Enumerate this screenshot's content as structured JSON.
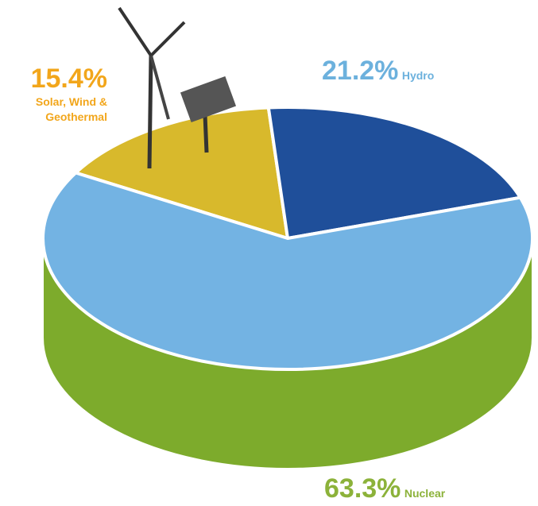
{
  "chart_data": {
    "type": "pie",
    "categories": [
      "Solar, Wind & Geothermal",
      "Hydro",
      "Nuclear"
    ],
    "values": [
      15.4,
      21.2,
      63.3
    ],
    "value_labels": [
      "15.4%",
      "21.2%",
      "63.3%"
    ],
    "colors": [
      "#d8b92c",
      "#1f4f9a",
      "#73b3e3"
    ],
    "label_colors": [
      "#f2a61b",
      "#6cb1dd",
      "#8cb23a"
    ]
  }
}
